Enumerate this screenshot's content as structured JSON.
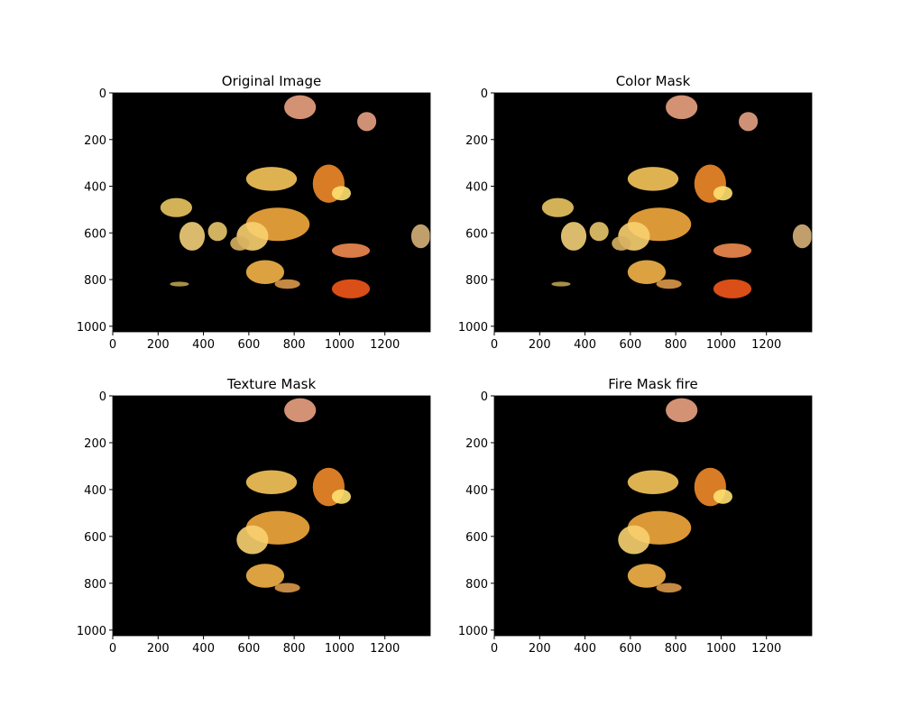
{
  "chart_data": [
    {
      "type": "image",
      "title": "Original Image",
      "xlim": [
        0,
        1400
      ],
      "ylim": [
        1024,
        0
      ],
      "xticks": [
        0,
        200,
        400,
        600,
        800,
        1000,
        1200
      ],
      "yticks": [
        0,
        200,
        400,
        600,
        800,
        1000
      ]
    },
    {
      "type": "image",
      "title": "Color Mask",
      "xlim": [
        0,
        1400
      ],
      "ylim": [
        1024,
        0
      ],
      "xticks": [
        0,
        200,
        400,
        600,
        800,
        1000,
        1200
      ],
      "yticks": [
        0,
        200,
        400,
        600,
        800,
        1000
      ]
    },
    {
      "type": "image",
      "title": "Texture Mask",
      "xlim": [
        0,
        1400
      ],
      "ylim": [
        1024,
        0
      ],
      "xticks": [
        0,
        200,
        400,
        600,
        800,
        1000,
        1200
      ],
      "yticks": [
        0,
        200,
        400,
        600,
        800,
        1000
      ]
    },
    {
      "type": "image",
      "title": "Fire Mask fire",
      "xlim": [
        0,
        1400
      ],
      "ylim": [
        1024,
        0
      ],
      "xticks": [
        0,
        200,
        400,
        600,
        800,
        1000,
        1200
      ],
      "yticks": [
        0,
        200,
        400,
        600,
        800,
        1000
      ]
    }
  ]
}
